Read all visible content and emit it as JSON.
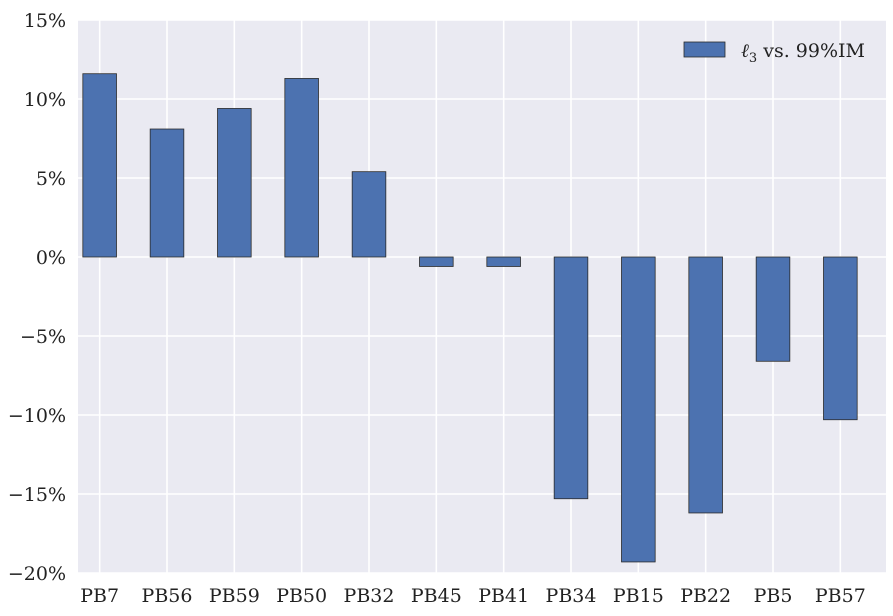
{
  "chart_data": {
    "type": "bar",
    "title": "",
    "xlabel": "",
    "ylabel": "",
    "categories": [
      "PB7",
      "PB56",
      "PB59",
      "PB50",
      "PB32",
      "PB45",
      "PB41",
      "PB34",
      "PB15",
      "PB22",
      "PB5",
      "PB57"
    ],
    "series": [
      {
        "name": "ℓ3 vs. 99%IM",
        "values": [
          11.6,
          8.1,
          9.4,
          11.3,
          5.4,
          -0.6,
          -0.6,
          -15.3,
          -19.3,
          -16.2,
          -6.6,
          -10.3
        ],
        "color": "#4c72b0"
      }
    ],
    "ylim": [
      -20,
      15
    ],
    "yticks": [
      15,
      10,
      5,
      0,
      -5,
      -10,
      -15,
      -20
    ],
    "ytick_labels": [
      "15%",
      "10%",
      "5%",
      "0%",
      "−5%",
      "−10%",
      "−15%",
      "−20%"
    ],
    "grid": true,
    "legend": {
      "position": "top-right",
      "label_main": "ℓ",
      "label_sub": "3",
      "label_rest": " vs. 99%IM"
    },
    "colors": {
      "background": "#eaeaf2",
      "grid": "#ffffff",
      "bar": "#4c72b0",
      "bar_edge": "#2b2b2b"
    }
  }
}
